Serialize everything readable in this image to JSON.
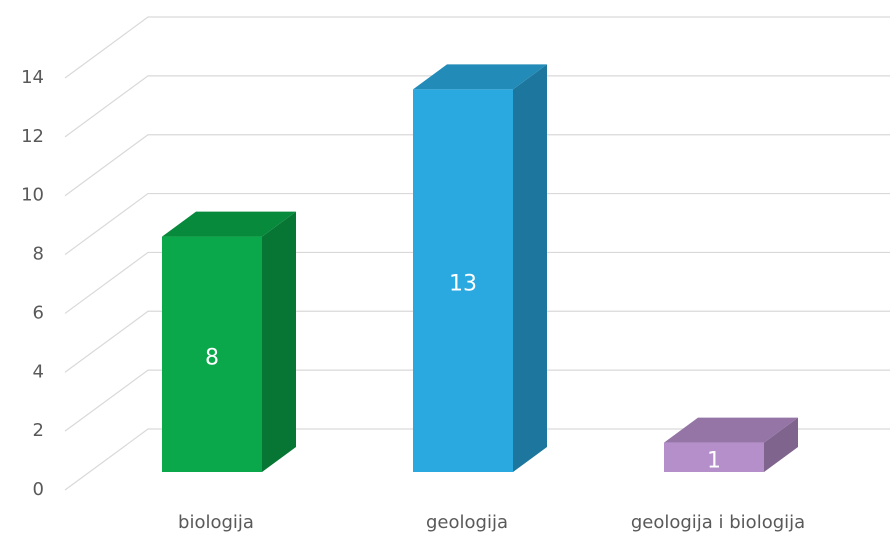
{
  "chart_data": {
    "type": "bar3d",
    "categories": [
      "biologija",
      "geologija",
      "geologija i biologija"
    ],
    "values": [
      8,
      13,
      1
    ],
    "colors": [
      "#0aa84a",
      "#2aa9e0",
      "#b58fca"
    ],
    "ylim": [
      0,
      14
    ],
    "yticks": [
      0,
      2,
      4,
      6,
      8,
      10,
      12,
      14
    ],
    "grid": true
  }
}
